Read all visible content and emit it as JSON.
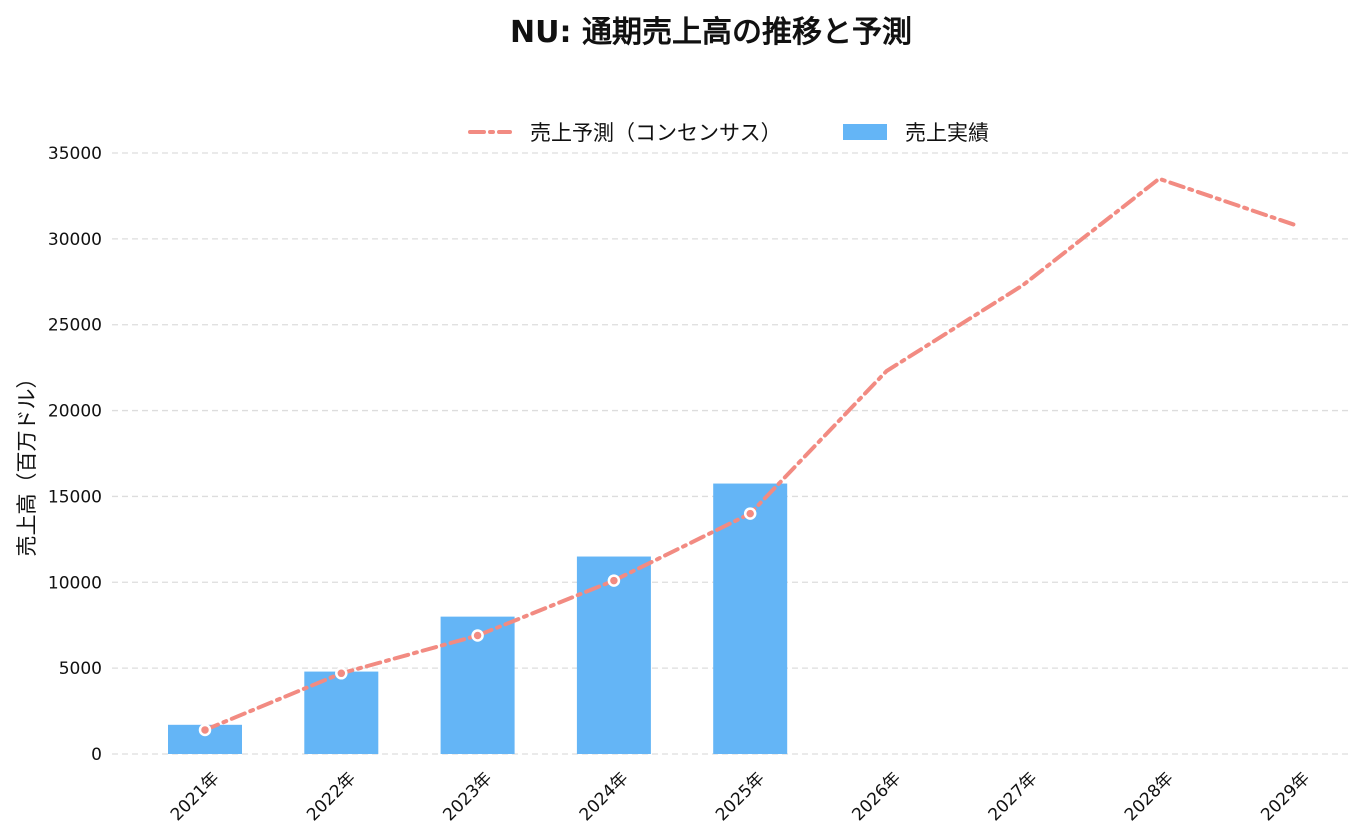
{
  "chart_data": {
    "type": "bar",
    "title": "NU: 通期売上高の推移と予測",
    "ylabel": "売上高（百万ドル）",
    "xlabel": "",
    "categories": [
      "2021年",
      "2022年",
      "2023年",
      "2024年",
      "2025年",
      "2026年",
      "2027年",
      "2028年",
      "2029年"
    ],
    "ylim": [
      0,
      35000
    ],
    "yticks": [
      0,
      5000,
      10000,
      15000,
      20000,
      25000,
      30000,
      35000
    ],
    "grid": true,
    "legend_position": "top-center",
    "series": [
      {
        "name": "売上実績",
        "type": "bar",
        "color": "#64b5f6",
        "values": [
          1700,
          4800,
          8000,
          11500,
          15750,
          null,
          null,
          null,
          null
        ]
      },
      {
        "name": "売上予測（コンセンサス）",
        "type": "line",
        "color": "#f28b82",
        "style": "dash-dot",
        "values": [
          1400,
          4700,
          6900,
          10100,
          14000,
          22300,
          27300,
          33500,
          30800
        ],
        "markers": [
          true,
          true,
          true,
          true,
          true,
          false,
          false,
          false,
          false
        ]
      }
    ]
  }
}
